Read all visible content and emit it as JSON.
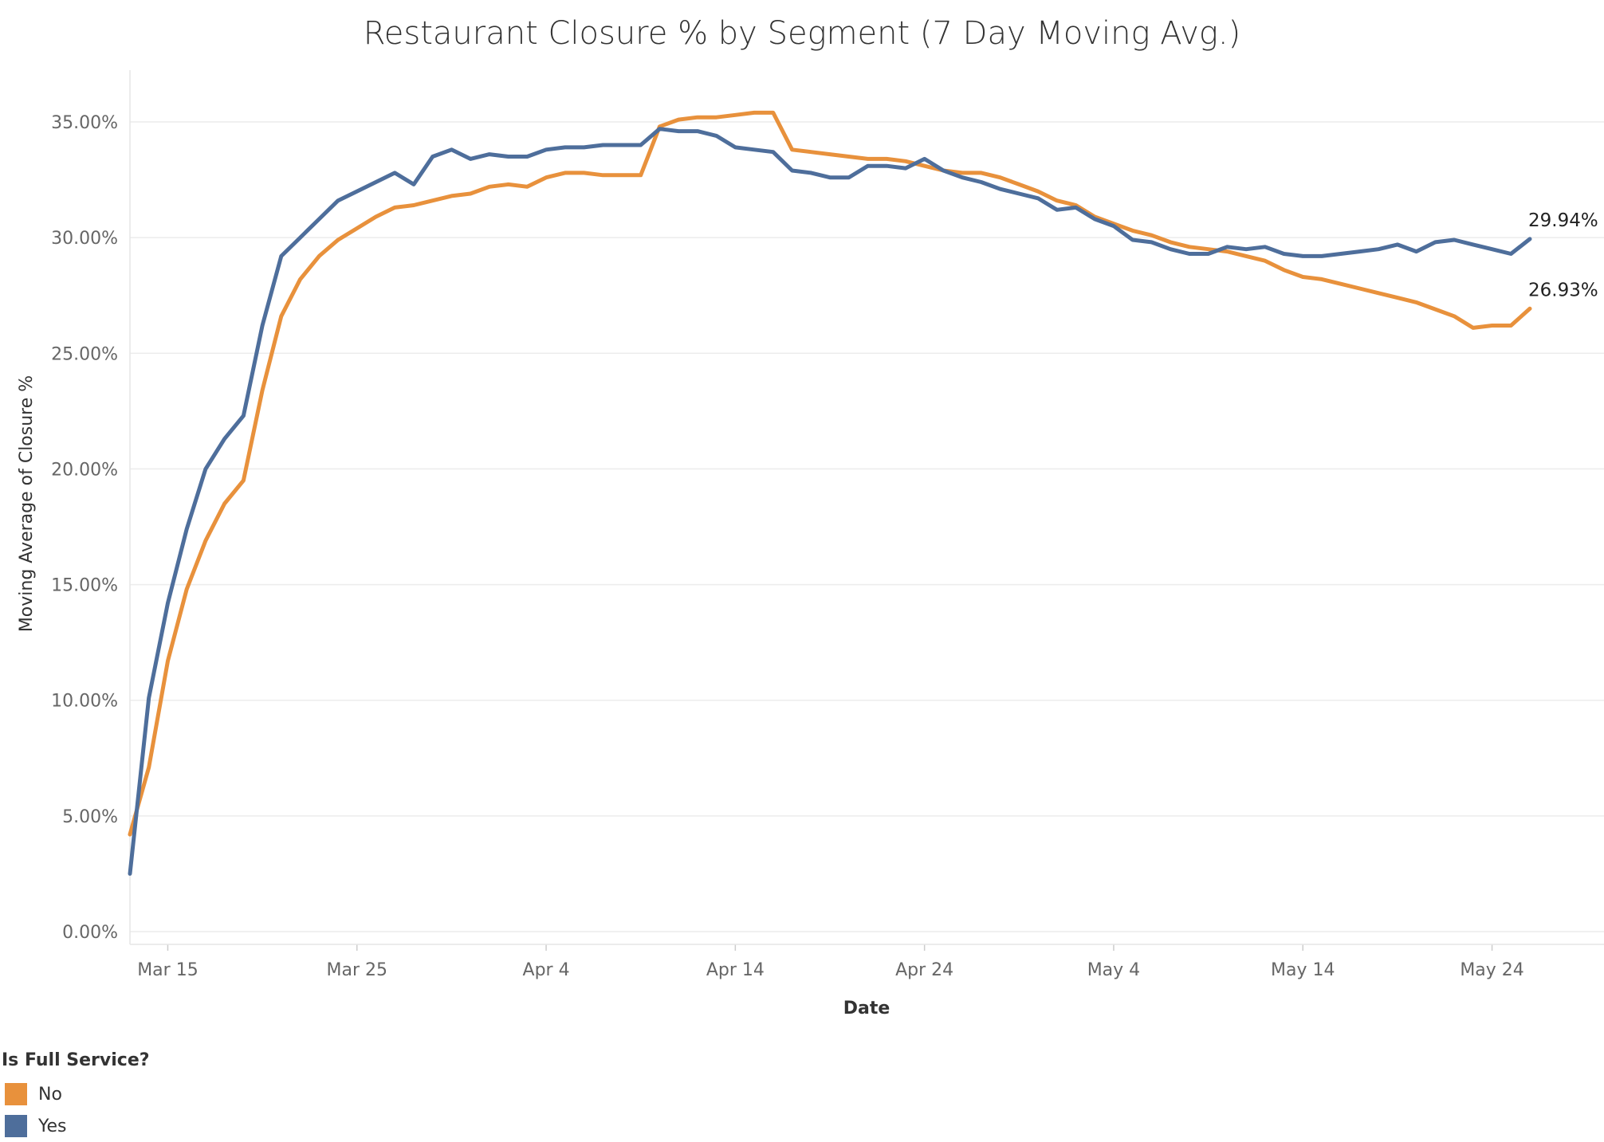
{
  "chart_data": {
    "type": "line",
    "title": "Restaurant Closure % by Segment (7 Day Moving Avg.)",
    "xlabel": "Date",
    "ylabel": "Moving Average of Closure %",
    "x_ticks": [
      "Mar 15",
      "Mar 25",
      "Apr 4",
      "Apr 14",
      "Apr 24",
      "May 4",
      "May 14",
      "May 24"
    ],
    "y_ticks": [
      "0.00%",
      "5.00%",
      "10.00%",
      "15.00%",
      "20.00%",
      "25.00%",
      "30.00%",
      "35.00%"
    ],
    "ylim": [
      0,
      36.5
    ],
    "x_start": "Mar 13",
    "x_end": "May 29",
    "grid": "horizontal",
    "legend": {
      "title": "Is Full Service?",
      "position": "bottom-left",
      "entries": [
        {
          "name": "No",
          "color": "#E8913C"
        },
        {
          "name": "Yes",
          "color": "#4E6E9B"
        }
      ]
    },
    "series": [
      {
        "name": "No",
        "color": "#E8913C",
        "end_label": "26.93%",
        "points": [
          [
            "Mar 13",
            4.2
          ],
          [
            "Mar 14",
            7.1
          ],
          [
            "Mar 15",
            11.7
          ],
          [
            "Mar 16",
            14.8
          ],
          [
            "Mar 17",
            16.9
          ],
          [
            "Mar 18",
            18.5
          ],
          [
            "Mar 19",
            19.5
          ],
          [
            "Mar 20",
            23.4
          ],
          [
            "Mar 21",
            26.6
          ],
          [
            "Mar 22",
            28.2
          ],
          [
            "Mar 23",
            29.2
          ],
          [
            "Mar 24",
            29.9
          ],
          [
            "Mar 25",
            30.4
          ],
          [
            "Mar 26",
            30.9
          ],
          [
            "Mar 27",
            31.3
          ],
          [
            "Mar 28",
            31.4
          ],
          [
            "Mar 29",
            31.6
          ],
          [
            "Mar 30",
            31.8
          ],
          [
            "Mar 31",
            31.9
          ],
          [
            "Apr 1",
            32.2
          ],
          [
            "Apr 2",
            32.3
          ],
          [
            "Apr 3",
            32.2
          ],
          [
            "Apr 4",
            32.6
          ],
          [
            "Apr 5",
            32.8
          ],
          [
            "Apr 6",
            32.8
          ],
          [
            "Apr 7",
            32.7
          ],
          [
            "Apr 8",
            32.7
          ],
          [
            "Apr 9",
            32.7
          ],
          [
            "Apr 10",
            34.8
          ],
          [
            "Apr 11",
            35.1
          ],
          [
            "Apr 12",
            35.2
          ],
          [
            "Apr 13",
            35.2
          ],
          [
            "Apr 14",
            35.3
          ],
          [
            "Apr 15",
            35.4
          ],
          [
            "Apr 16",
            35.4
          ],
          [
            "Apr 17",
            33.8
          ],
          [
            "Apr 18",
            33.7
          ],
          [
            "Apr 19",
            33.6
          ],
          [
            "Apr 20",
            33.5
          ],
          [
            "Apr 21",
            33.4
          ],
          [
            "Apr 22",
            33.4
          ],
          [
            "Apr 23",
            33.3
          ],
          [
            "Apr 24",
            33.1
          ],
          [
            "Apr 25",
            32.9
          ],
          [
            "Apr 26",
            32.8
          ],
          [
            "Apr 27",
            32.8
          ],
          [
            "Apr 28",
            32.6
          ],
          [
            "Apr 29",
            32.3
          ],
          [
            "Apr 30",
            32.0
          ],
          [
            "May 1",
            31.6
          ],
          [
            "May 2",
            31.4
          ],
          [
            "May 3",
            30.9
          ],
          [
            "May 4",
            30.6
          ],
          [
            "May 5",
            30.3
          ],
          [
            "May 6",
            30.1
          ],
          [
            "May 7",
            29.8
          ],
          [
            "May 8",
            29.6
          ],
          [
            "May 9",
            29.5
          ],
          [
            "May 10",
            29.4
          ],
          [
            "May 11",
            29.2
          ],
          [
            "May 12",
            29.0
          ],
          [
            "May 13",
            28.6
          ],
          [
            "May 14",
            28.3
          ],
          [
            "May 15",
            28.2
          ],
          [
            "May 16",
            28.0
          ],
          [
            "May 17",
            27.8
          ],
          [
            "May 18",
            27.6
          ],
          [
            "May 19",
            27.4
          ],
          [
            "May 20",
            27.2
          ],
          [
            "May 21",
            26.9
          ],
          [
            "May 22",
            26.6
          ],
          [
            "May 23",
            26.1
          ],
          [
            "May 24",
            26.2
          ],
          [
            "May 25",
            26.2
          ],
          [
            "May 26",
            26.93
          ]
        ]
      },
      {
        "name": "Yes",
        "color": "#4E6E9B",
        "end_label": "29.94%",
        "points": [
          [
            "Mar 13",
            2.5
          ],
          [
            "Mar 14",
            10.1
          ],
          [
            "Mar 15",
            14.2
          ],
          [
            "Mar 16",
            17.4
          ],
          [
            "Mar 17",
            20.0
          ],
          [
            "Mar 18",
            21.3
          ],
          [
            "Mar 19",
            22.3
          ],
          [
            "Mar 20",
            26.2
          ],
          [
            "Mar 21",
            29.2
          ],
          [
            "Mar 22",
            30.0
          ],
          [
            "Mar 23",
            30.8
          ],
          [
            "Mar 24",
            31.6
          ],
          [
            "Mar 25",
            32.0
          ],
          [
            "Mar 26",
            32.4
          ],
          [
            "Mar 27",
            32.8
          ],
          [
            "Mar 28",
            32.3
          ],
          [
            "Mar 29",
            33.5
          ],
          [
            "Mar 30",
            33.8
          ],
          [
            "Mar 31",
            33.4
          ],
          [
            "Apr 1",
            33.6
          ],
          [
            "Apr 2",
            33.5
          ],
          [
            "Apr 3",
            33.5
          ],
          [
            "Apr 4",
            33.8
          ],
          [
            "Apr 5",
            33.9
          ],
          [
            "Apr 6",
            33.9
          ],
          [
            "Apr 7",
            34.0
          ],
          [
            "Apr 8",
            34.0
          ],
          [
            "Apr 9",
            34.0
          ],
          [
            "Apr 10",
            34.7
          ],
          [
            "Apr 11",
            34.6
          ],
          [
            "Apr 12",
            34.6
          ],
          [
            "Apr 13",
            34.4
          ],
          [
            "Apr 14",
            33.9
          ],
          [
            "Apr 15",
            33.8
          ],
          [
            "Apr 16",
            33.7
          ],
          [
            "Apr 17",
            32.9
          ],
          [
            "Apr 18",
            32.8
          ],
          [
            "Apr 19",
            32.6
          ],
          [
            "Apr 20",
            32.6
          ],
          [
            "Apr 21",
            33.1
          ],
          [
            "Apr 22",
            33.1
          ],
          [
            "Apr 23",
            33.0
          ],
          [
            "Apr 24",
            33.4
          ],
          [
            "Apr 25",
            32.9
          ],
          [
            "Apr 26",
            32.6
          ],
          [
            "Apr 27",
            32.4
          ],
          [
            "Apr 28",
            32.1
          ],
          [
            "Apr 29",
            31.9
          ],
          [
            "Apr 30",
            31.7
          ],
          [
            "May 1",
            31.2
          ],
          [
            "May 2",
            31.3
          ],
          [
            "May 3",
            30.8
          ],
          [
            "May 4",
            30.5
          ],
          [
            "May 5",
            29.9
          ],
          [
            "May 6",
            29.8
          ],
          [
            "May 7",
            29.5
          ],
          [
            "May 8",
            29.3
          ],
          [
            "May 9",
            29.3
          ],
          [
            "May 10",
            29.6
          ],
          [
            "May 11",
            29.5
          ],
          [
            "May 12",
            29.6
          ],
          [
            "May 13",
            29.3
          ],
          [
            "May 14",
            29.2
          ],
          [
            "May 15",
            29.2
          ],
          [
            "May 16",
            29.3
          ],
          [
            "May 17",
            29.4
          ],
          [
            "May 18",
            29.5
          ],
          [
            "May 19",
            29.7
          ],
          [
            "May 20",
            29.4
          ],
          [
            "May 21",
            29.8
          ],
          [
            "May 22",
            29.9
          ],
          [
            "May 23",
            29.7
          ],
          [
            "May 24",
            29.5
          ],
          [
            "May 25",
            29.3
          ],
          [
            "May 26",
            29.94
          ]
        ]
      }
    ]
  }
}
